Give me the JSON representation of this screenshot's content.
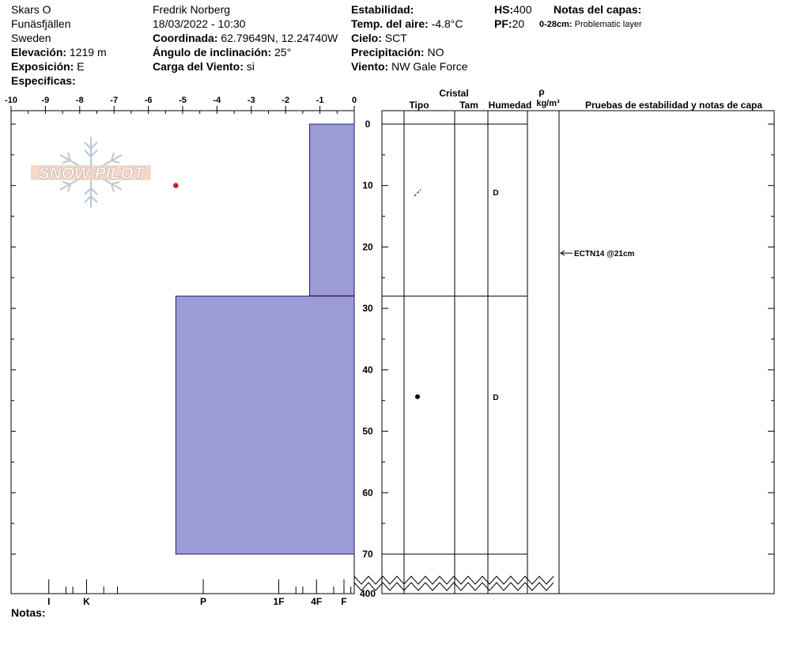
{
  "header": {
    "col1": {
      "site": "Skars O",
      "area": "Funäsfjällen",
      "country": "Sweden",
      "elevation_label": "Elevación:",
      "elevation": "1219 m",
      "aspect_label": "Exposición:",
      "aspect": "E",
      "specifics_label": "Especificas:"
    },
    "col2": {
      "observer": "Fredrik Norberg",
      "datetime": "18/03/2022 - 10:30",
      "coords_label": "Coordinada:",
      "coords": "62.79649N, 12.24740W",
      "slope_label": "Ángulo de inclinación:",
      "slope": "25°",
      "windload_label": "Carga del Viento:",
      "windload": "si"
    },
    "col3": {
      "stability_label": "Estabilidad:",
      "airtemp_label": "Temp. del aire:",
      "airtemp": "-4.8°C",
      "sky_label": "Cielo:",
      "sky": "SCT",
      "precip_label": "Precipitación:",
      "precip": "NO",
      "wind_label": "Viento:",
      "wind": "NW Gale Force"
    },
    "col4": {
      "hs_label": "HS:",
      "hs": "400",
      "pf_label": "PF:",
      "pf": "20",
      "notes_label": "Notas del capas:",
      "note_range": "0-28cm:",
      "note_text": "Problematic layer"
    }
  },
  "logo_text": "SNOW PILOT",
  "notes_label": "Notas:",
  "table_headers": {
    "cristal": "Cristal",
    "tipo": "Tipo",
    "tam": "Tam",
    "humedad": "Humedad",
    "rho": "ρ",
    "density_unit": "kg/m³",
    "tests": "Pruebas de estabilidad y notas de capa"
  },
  "chart_data": {
    "type": "snow-profile",
    "hardness_axis": {
      "ticks": [
        "-10",
        "-9",
        "-8",
        "-7",
        "-6",
        "-5",
        "-4",
        "-3",
        "-2",
        "-1",
        "0"
      ],
      "bottom_labels": [
        "I",
        "K",
        "P",
        "1F",
        "4F",
        "F"
      ]
    },
    "depth_axis": {
      "unit": "cm",
      "ticks": [
        "0",
        "10",
        "20",
        "30",
        "40",
        "50",
        "60",
        "70"
      ],
      "bottom_label": "400"
    },
    "temperature_points": [
      {
        "depth": 10,
        "temp": -5.2
      }
    ],
    "layers": [
      {
        "top": 0,
        "bottom": 28,
        "hardness": -1.3,
        "grain": "/",
        "moisture": "D",
        "problematic": true
      },
      {
        "top": 28,
        "bottom": 70,
        "hardness": -5.2,
        "grain": "•",
        "moisture": "D",
        "problematic": false
      }
    ],
    "stability_tests": [
      {
        "depth": 21,
        "text": "ECTN14 @21cm"
      }
    ],
    "colors": {
      "layer_fill": "#9c9bd6",
      "layer_stroke": "#1d1d7a",
      "problematic": "#8b1a1a",
      "temp_point": "#d02020"
    }
  }
}
